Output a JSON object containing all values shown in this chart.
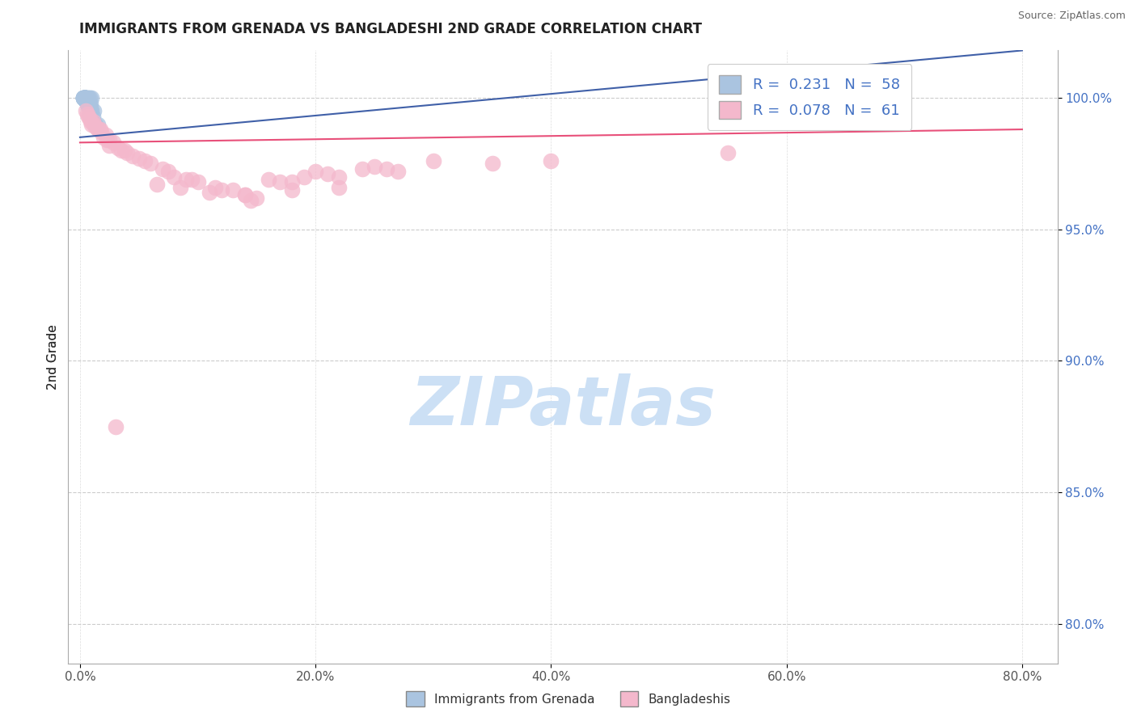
{
  "title": "IMMIGRANTS FROM GRENADA VS BANGLADESHI 2ND GRADE CORRELATION CHART",
  "source": "Source: ZipAtlas.com",
  "xlabel_vals": [
    0.0,
    20.0,
    40.0,
    60.0,
    80.0
  ],
  "ylabel_vals": [
    80.0,
    85.0,
    90.0,
    95.0,
    100.0
  ],
  "xlim": [
    -1.0,
    83.0
  ],
  "ylim": [
    78.5,
    101.8
  ],
  "ylabel": "2nd Grade",
  "legend_label1": "Immigrants from Grenada",
  "legend_label2": "Bangladeshis",
  "color_blue": "#aac4e0",
  "color_pink": "#f4b8cc",
  "line_color_blue": "#4060a8",
  "line_color_pink": "#e8507a",
  "watermark": "ZIPatlas",
  "watermark_color": "#cce0f5",
  "blue_x": [
    0.05,
    0.08,
    0.1,
    0.12,
    0.15,
    0.05,
    0.07,
    0.09,
    0.11,
    0.06,
    0.04,
    0.08,
    0.1,
    0.13,
    0.07,
    0.05,
    0.09,
    0.06,
    0.08,
    0.04,
    0.03,
    0.06,
    0.05,
    0.07,
    0.04,
    0.06,
    0.08,
    0.05,
    0.04,
    0.03,
    0.07,
    0.06,
    0.05,
    0.04,
    0.06,
    0.05,
    0.04,
    0.03,
    0.05,
    0.04,
    0.03,
    0.06,
    0.05,
    0.04,
    0.07,
    0.05,
    0.04,
    0.03,
    0.06,
    0.05,
    0.04,
    0.03,
    0.05,
    0.04,
    0.06,
    0.05,
    0.04,
    0.03
  ],
  "blue_y": [
    100.0,
    100.0,
    100.0,
    99.5,
    99.0,
    100.0,
    100.0,
    99.8,
    99.3,
    100.0,
    100.0,
    99.7,
    99.5,
    99.0,
    99.8,
    100.0,
    99.6,
    99.9,
    99.4,
    100.0,
    100.0,
    99.8,
    99.9,
    99.7,
    100.0,
    99.8,
    99.5,
    99.9,
    100.0,
    100.0,
    99.7,
    99.8,
    99.9,
    100.0,
    99.8,
    99.9,
    100.0,
    100.0,
    99.9,
    100.0,
    100.0,
    99.8,
    99.9,
    100.0,
    99.7,
    99.9,
    100.0,
    100.0,
    99.8,
    99.9,
    100.0,
    100.0,
    99.9,
    100.0,
    99.8,
    99.9,
    100.0,
    100.0
  ],
  "pink_x": [
    0.5,
    1.0,
    1.5,
    2.0,
    2.5,
    3.5,
    4.5,
    6.0,
    8.0,
    10.0,
    12.0,
    15.0,
    18.0,
    22.0,
    27.0,
    0.7,
    1.2,
    1.8,
    2.8,
    4.0,
    5.5,
    7.5,
    9.5,
    11.5,
    14.0,
    17.0,
    21.0,
    26.0,
    35.0,
    0.8,
    1.3,
    2.2,
    3.2,
    5.0,
    7.0,
    9.0,
    13.0,
    16.0,
    20.0,
    25.0,
    30.0,
    0.6,
    1.1,
    1.7,
    2.5,
    3.8,
    6.5,
    8.5,
    11.0,
    14.5,
    19.0,
    24.0,
    40.0,
    55.0,
    0.9,
    1.6,
    2.3,
    3.0,
    22.0,
    18.0,
    14.0
  ],
  "pink_y": [
    99.5,
    99.0,
    98.8,
    98.5,
    98.2,
    98.0,
    97.8,
    97.5,
    97.0,
    96.8,
    96.5,
    96.2,
    96.5,
    97.0,
    97.2,
    99.3,
    99.0,
    98.7,
    98.3,
    97.9,
    97.6,
    97.2,
    96.9,
    96.6,
    96.3,
    96.8,
    97.1,
    97.3,
    97.5,
    99.2,
    98.9,
    98.6,
    98.1,
    97.7,
    97.3,
    96.9,
    96.5,
    96.9,
    97.2,
    97.4,
    97.6,
    99.4,
    99.1,
    98.8,
    98.4,
    98.0,
    96.7,
    96.6,
    96.4,
    96.1,
    97.0,
    97.3,
    97.6,
    97.9,
    99.1,
    98.8,
    98.4,
    87.5,
    96.6,
    96.8,
    96.3
  ],
  "pink_trendline_y0": 98.3,
  "pink_trendline_y1": 98.8,
  "blue_trendline_x0": 0.0,
  "blue_trendline_y0": 98.5,
  "blue_trendline_x1": 80.0,
  "blue_trendline_y1": 101.8
}
